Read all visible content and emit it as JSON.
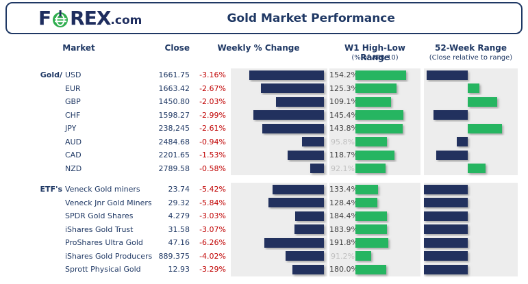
{
  "header": {
    "logo": {
      "part1": "F",
      "part2": "REX",
      "suffix": ".com",
      "o_icon": "forexcom-green-o-icon"
    },
    "title": "Gold Market Performance"
  },
  "columns": {
    "market": "Market",
    "close": "Close",
    "weekly": "Weekly % Change",
    "w1": "W1 High-Low Range",
    "w1_sub": "(% of ATR 10)",
    "range52": "52-Week Range",
    "range52_sub": "(Close relative to range)"
  },
  "colors": {
    "navy_text": "#1F3864",
    "navy_bar": "#22315E",
    "green_bar": "#26B561",
    "red_text": "#C00000",
    "panel_gray": "#EDEDED",
    "value_dim": "#BFBFBF",
    "value_dark": "#3F3F3F",
    "logo_green": "#2FAD4E"
  },
  "chart_data": {
    "type": "table",
    "title": "Gold Market Performance",
    "notes": "Navy bars = Weekly % Change (negative, right-anchored). Green bars = W1 High-Low Range as % of ATR10. 52-Week Range bars: navy left of midpoint = close in lower half of 52-week range, green right of midpoint = close in upper half (position estimated from pixels, 0=52wk low, 1=52wk high).",
    "sections": [
      {
        "group": "Gold/",
        "rows": [
          {
            "market": "USD",
            "close": "1661.75",
            "weekly_pct": -3.16,
            "weekly_label": "-3.16%",
            "w1_atr_pct": 154.2,
            "w1_label": "154.2%",
            "pos52": 0.05
          },
          {
            "market": "EUR",
            "close": "1663.42",
            "weekly_pct": -2.67,
            "weekly_label": "-2.67%",
            "w1_atr_pct": 125.3,
            "w1_label": "125.3%",
            "pos52": 0.63
          },
          {
            "market": "GBP",
            "close": "1450.80",
            "weekly_pct": -2.03,
            "weekly_label": "-2.03%",
            "w1_atr_pct": 109.1,
            "w1_label": "109.1%",
            "pos52": 0.82
          },
          {
            "market": "CHF",
            "close": "1598.27",
            "weekly_pct": -2.99,
            "weekly_label": "-2.99%",
            "w1_atr_pct": 145.4,
            "w1_label": "145.4%",
            "pos52": 0.13
          },
          {
            "market": "JPY",
            "close": "238,245",
            "weekly_pct": -2.61,
            "weekly_label": "-2.61%",
            "w1_atr_pct": 143.8,
            "w1_label": "143.8%",
            "pos52": 0.87
          },
          {
            "market": "AUD",
            "close": "2484.68",
            "weekly_pct": -0.94,
            "weekly_label": "-0.94%",
            "w1_atr_pct": 95.8,
            "w1_label": "95.8%",
            "pos52": 0.38
          },
          {
            "market": "CAD",
            "close": "2201.65",
            "weekly_pct": -1.53,
            "weekly_label": "-1.53%",
            "w1_atr_pct": 118.7,
            "w1_label": "118.7%",
            "pos52": 0.16
          },
          {
            "market": "NZD",
            "close": "2789.58",
            "weekly_pct": -0.58,
            "weekly_label": "-0.58%",
            "w1_atr_pct": 92.1,
            "w1_label": "92.1%",
            "pos52": 0.69
          }
        ]
      },
      {
        "group": "ETF's",
        "rows": [
          {
            "market": "Veneck Gold miners",
            "close": "23.74",
            "weekly_pct": -5.42,
            "weekly_label": "-5.42%",
            "w1_atr_pct": 133.4,
            "w1_label": "133.4%",
            "pos52": 0.02
          },
          {
            "market": "Veneck Jnr Gold Miners",
            "close": "29.32",
            "weekly_pct": -5.84,
            "weekly_label": "-5.84%",
            "w1_atr_pct": 128.4,
            "w1_label": "128.4%",
            "pos52": 0.02
          },
          {
            "market": "SPDR Gold Shares",
            "close": "4.279",
            "weekly_pct": -3.03,
            "weekly_label": "-3.03%",
            "w1_atr_pct": 184.4,
            "w1_label": "184.4%",
            "pos52": 0.02
          },
          {
            "market": "iShares Gold Trust",
            "close": "31.58",
            "weekly_pct": -3.07,
            "weekly_label": "-3.07%",
            "w1_atr_pct": 183.9,
            "w1_label": "183.9%",
            "pos52": 0.02
          },
          {
            "market": "ProShares Ultra Gold",
            "close": "47.16",
            "weekly_pct": -6.26,
            "weekly_label": "-6.26%",
            "w1_atr_pct": 191.8,
            "w1_label": "191.8%",
            "pos52": 0.02
          },
          {
            "market": "iShares Gold Producers",
            "close": "889.375",
            "weekly_pct": -4.02,
            "weekly_label": "-4.02%",
            "w1_atr_pct": 91.2,
            "w1_label": "91.2%",
            "pos52": 0.02
          },
          {
            "market": "Sprott Physical Gold",
            "close": "12.93",
            "weekly_pct": -3.29,
            "weekly_label": "-3.29%",
            "w1_atr_pct": 180.0,
            "w1_label": "180.0%",
            "pos52": 0.02
          }
        ]
      }
    ]
  }
}
